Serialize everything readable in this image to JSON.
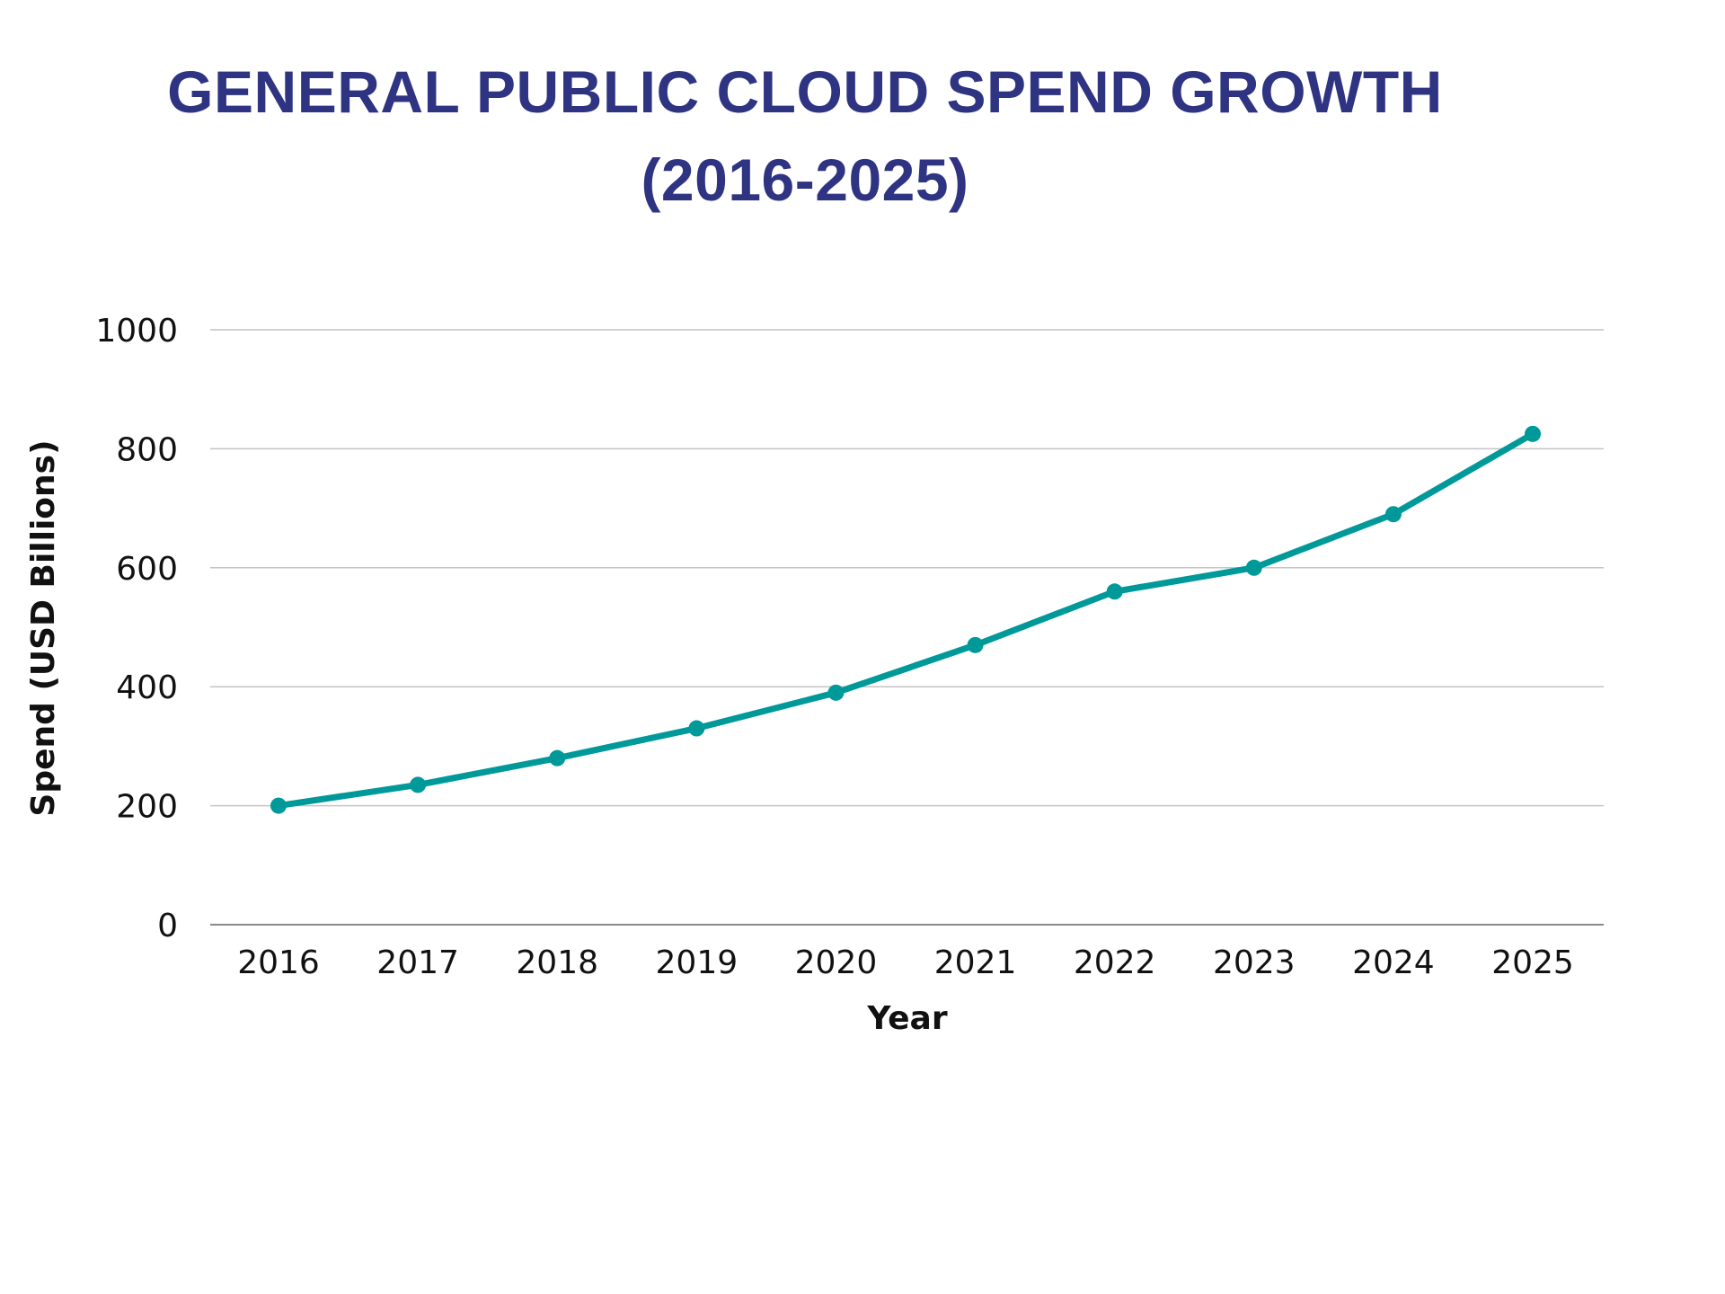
{
  "chart_data": {
    "type": "line",
    "title": "GENERAL PUBLIC CLOUD SPEND GROWTH",
    "subtitle": "(2016-2025)",
    "xlabel": "Year",
    "ylabel": "Spend (USD Billions)",
    "categories": [
      "2016",
      "2017",
      "2018",
      "2019",
      "2020",
      "2021",
      "2022",
      "2023",
      "2024",
      "2025"
    ],
    "series": [
      {
        "name": "Spend (USD Billions)",
        "values": [
          200,
          235,
          280,
          330,
          390,
          470,
          560,
          600,
          690,
          825
        ],
        "color": "#00999A"
      }
    ],
    "ylim": [
      0,
      1000
    ],
    "yticks": [
      0,
      200,
      400,
      600,
      800,
      1000
    ],
    "ytick_labels": [
      "0",
      "200",
      "400",
      "600",
      "800",
      "1000"
    ],
    "grid": true,
    "markers": true,
    "legend": "none"
  },
  "colors": {
    "title": "#2E3382",
    "line": "#00999A",
    "grid": "#C4C4C4",
    "baseline": "#8A8A8A",
    "text": "#111111"
  }
}
